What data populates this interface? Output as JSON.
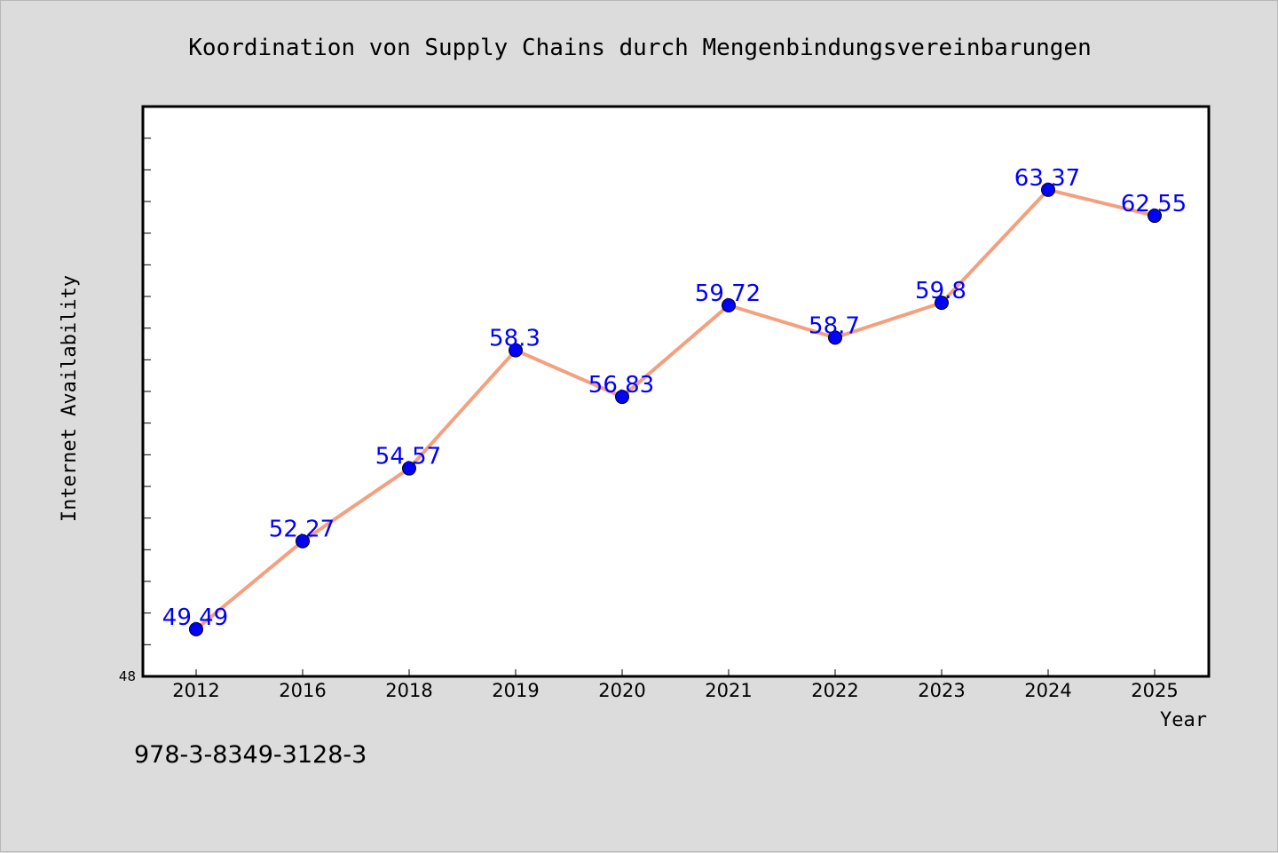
{
  "chart_data": {
    "type": "line",
    "title": "Koordination von Supply Chains durch Mengenbindungsvereinbarungen",
    "xlabel": "Year",
    "ylabel": "Internet Availability",
    "categories": [
      "2012",
      "2016",
      "2018",
      "2019",
      "2020",
      "2021",
      "2022",
      "2023",
      "2024",
      "2025"
    ],
    "series": [
      {
        "values": [
          49.49,
          52.27,
          54.57,
          58.3,
          56.83,
          59.72,
          58.7,
          59.8,
          63.37,
          62.55
        ]
      }
    ],
    "data_labels": [
      "49.49",
      "52.27",
      "54.57",
      "58.3",
      "56.83",
      "59.72",
      "58.7",
      "59.8",
      "63.37",
      "62.55"
    ],
    "y_tick_label": "48",
    "ylim": [
      48,
      66
    ],
    "grid": false,
    "line_color": "#f4a07f",
    "marker_color": "#0000ff",
    "label_color": "#0000ff"
  },
  "footer": {
    "code": "978-3-8349-3128-3"
  }
}
